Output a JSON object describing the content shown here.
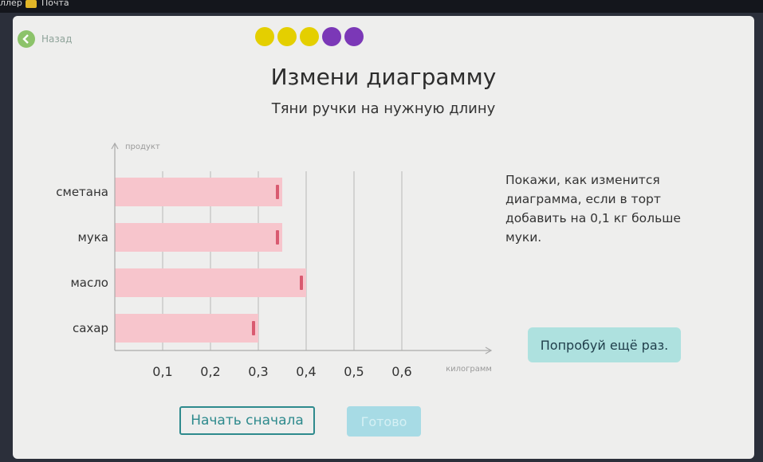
{
  "browser": {
    "bookmarks": [
      "ллер",
      "Почта"
    ]
  },
  "nav": {
    "back_label": "Назад"
  },
  "progress": {
    "dots": [
      "#e4cf00",
      "#e4cf00",
      "#e4cf00",
      "#7b38b7",
      "#7b38b7"
    ]
  },
  "header": {
    "title": "Измени диаграмму",
    "subtitle": "Тяни ручки на нужную длину"
  },
  "task": {
    "text": "Покажи, как изменится диаграмма, если в торт добавить на 0,1 кг больше муки."
  },
  "feedback": {
    "label": "Попробуй ещё раз."
  },
  "buttons": {
    "restart_label": "Начать сначала",
    "done_label": "Готово"
  },
  "colors": {
    "bar": "#f7c5cc",
    "handle": "#d95a70",
    "accent": "#2e8a8d"
  },
  "chart_data": {
    "type": "bar",
    "orientation": "horizontal",
    "categories": [
      "сметана",
      "мука",
      "масло",
      "сахар"
    ],
    "values": [
      0.35,
      0.35,
      0.4,
      0.3
    ],
    "xlabel": "килограмм",
    "ylabel": "продукт",
    "xticks": [
      "0,1",
      "0,2",
      "0,3",
      "0,4",
      "0,5",
      "0,6"
    ],
    "xlim": [
      0,
      0.7
    ],
    "grid": true
  }
}
